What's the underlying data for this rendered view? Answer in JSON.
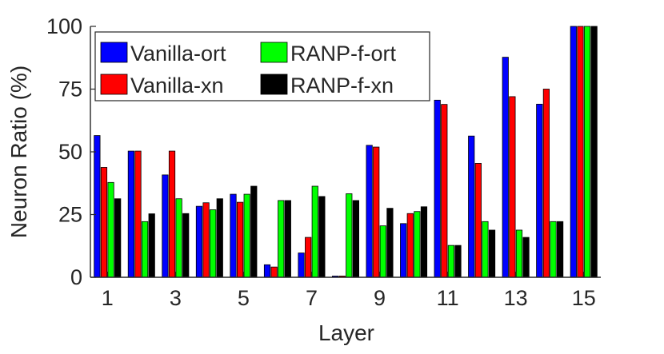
{
  "chart_data": {
    "type": "bar",
    "title": "",
    "xlabel": "Layer",
    "ylabel": "Neuron Ratio (%)",
    "ylim": [
      0,
      100
    ],
    "yticks": [
      0,
      25,
      50,
      75,
      100
    ],
    "x": [
      1,
      2,
      3,
      4,
      5,
      6,
      7,
      8,
      9,
      10,
      11,
      12,
      13,
      14,
      15
    ],
    "xtick_labels": [
      "1",
      "3",
      "5",
      "7",
      "9",
      "11",
      "13",
      "15"
    ],
    "grid": false,
    "legend_position": "top-left",
    "series": [
      {
        "name": "Vanilla-ort",
        "color": "#0000ff",
        "values": [
          56.5,
          50.3,
          40.8,
          28.3,
          33.1,
          5.0,
          9.7,
          0.5,
          52.6,
          21.4,
          70.6,
          56.3,
          87.7,
          69.0,
          100
        ]
      },
      {
        "name": "Vanilla-xn",
        "color": "#ff0000",
        "values": [
          43.8,
          50.3,
          50.3,
          29.7,
          29.9,
          4.1,
          15.9,
          0.5,
          51.9,
          25.4,
          68.9,
          45.4,
          72.0,
          75.0,
          100
        ]
      },
      {
        "name": "RANP-f-ort",
        "color": "#00ff00",
        "values": [
          37.8,
          22.2,
          31.3,
          26.9,
          33.1,
          30.6,
          36.3,
          33.3,
          20.5,
          26.2,
          12.7,
          22.2,
          18.8,
          22.2,
          100
        ]
      },
      {
        "name": "RANP-f-xn",
        "color": "#000000",
        "values": [
          31.3,
          25.3,
          25.4,
          31.3,
          36.3,
          30.6,
          32.2,
          30.6,
          27.5,
          28.1,
          12.7,
          18.8,
          15.9,
          22.2,
          100
        ]
      }
    ]
  }
}
